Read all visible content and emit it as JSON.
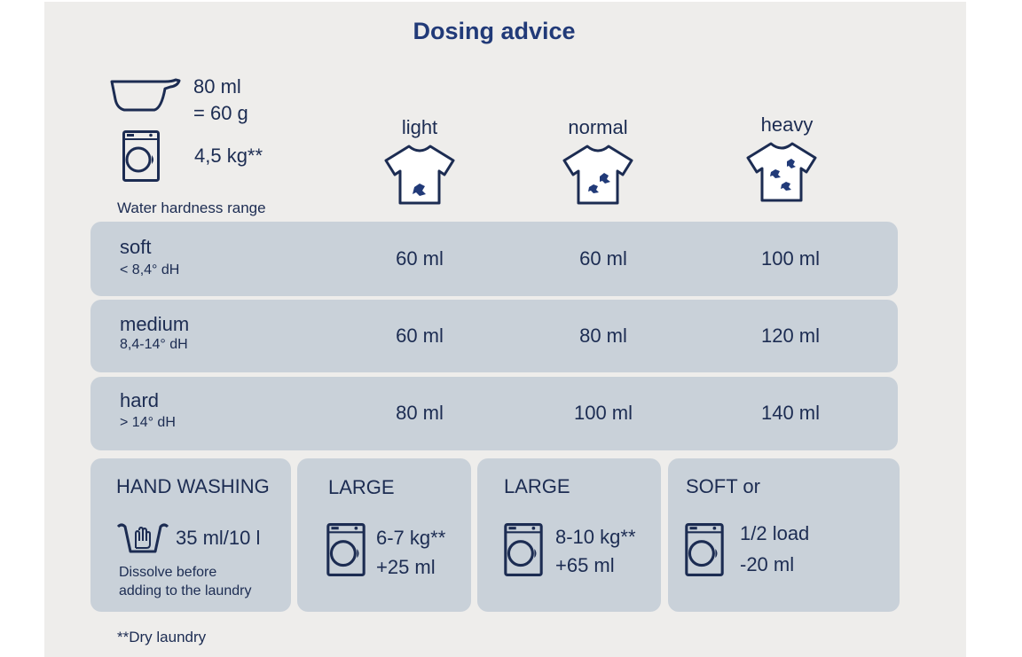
{
  "title": "Dosing advice",
  "cup": {
    "line1": "80 ml",
    "line2": "= 60 g",
    "icon": "measuring-cup-icon"
  },
  "machine_load": {
    "text": "4,5 kg**",
    "icon": "washing-machine-icon"
  },
  "water_hardness_label": "Water hardness range",
  "soiling": [
    {
      "label": "light",
      "icon": "tshirt-light-stain-icon"
    },
    {
      "label": "normal",
      "icon": "tshirt-normal-stain-icon"
    },
    {
      "label": "heavy",
      "icon": "tshirt-heavy-stain-icon"
    }
  ],
  "rows": [
    {
      "level": "soft",
      "range": "< 8,4° dH",
      "values": [
        "60 ml",
        "60 ml",
        "100 ml"
      ]
    },
    {
      "level": "medium",
      "range": "8,4-14° dH",
      "values": [
        "60 ml",
        "80 ml",
        "120 ml"
      ]
    },
    {
      "level": "hard",
      "range": "> 14° dH",
      "values": [
        "80 ml",
        "100 ml",
        "140 ml"
      ]
    }
  ],
  "boxes": {
    "hand": {
      "title": "HAND WASHING",
      "dose": "35 ml/10 l",
      "note1": "Dissolve before",
      "note2": "adding to the laundry",
      "icon": "hand-wash-icon"
    },
    "large1": {
      "title": "LARGE",
      "line1": "6-7 kg**",
      "line2": "+25 ml",
      "icon": "washing-machine-icon"
    },
    "large2": {
      "title": "LARGE",
      "line1": "8-10 kg**",
      "line2": "+65 ml",
      "icon": "washing-machine-icon"
    },
    "soft": {
      "title": "SOFT or",
      "line1": "1/2 load",
      "line2": "-20 ml",
      "icon": "washing-machine-icon"
    }
  },
  "footnote": "**Dry laundry",
  "colors": {
    "text": "#1c2c52",
    "title": "#213a78",
    "panel": "#eeedeb",
    "row": "#c9d1d9"
  }
}
